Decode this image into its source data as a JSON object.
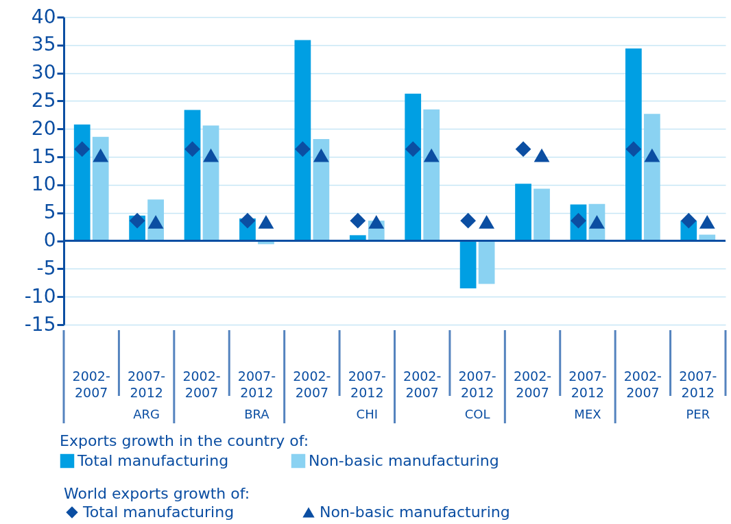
{
  "chart_data": {
    "type": "bar",
    "categories": [
      "2002-2007",
      "2007-2012",
      "2002-2007",
      "2007-2012",
      "2002-2007",
      "2007-2012",
      "2002-2007",
      "2007-2012",
      "2002-2007",
      "2007-2012",
      "2002-2007",
      "2007-2012"
    ],
    "series": [
      {
        "name": "Total manufacturing",
        "color": "#009fe3",
        "values": [
          20.8,
          4.5,
          23.4,
          4.0,
          35.9,
          1.0,
          26.3,
          -8.5,
          10.2,
          6.5,
          34.4,
          3.6
        ]
      },
      {
        "name": "Non-basic manufacturing",
        "color": "#8ad2f2",
        "values": [
          18.6,
          7.4,
          20.6,
          -0.6,
          18.2,
          3.6,
          23.5,
          -7.7,
          9.3,
          6.6,
          22.7,
          1.1
        ]
      },
      {
        "name": "Total manufacturing",
        "type": "scatter",
        "marker": "diamond",
        "color": "#0b4ea2",
        "values": [
          16.4,
          3.6,
          16.4,
          3.6,
          16.4,
          3.6,
          16.4,
          3.6,
          16.4,
          3.6,
          16.4,
          3.6
        ]
      },
      {
        "name": "Non-basic manufacturing",
        "type": "scatter",
        "marker": "triangle",
        "color": "#0b4ea2",
        "values": [
          15.3,
          3.4,
          15.3,
          3.4,
          15.3,
          3.4,
          15.3,
          3.4,
          15.3,
          3.4,
          15.3,
          3.4
        ]
      }
    ],
    "ylim": [
      -15,
      40
    ],
    "yticks": [
      -15,
      -10,
      -5,
      0,
      5,
      10,
      15,
      20,
      25,
      30,
      35,
      40
    ],
    "grid": "y",
    "legend": "bottom",
    "legend_title": "Exports growth in the country of:",
    "ref_lines": [
      {
        "axis": "y",
        "value": 0,
        "color": "#0b4ea2"
      }
    ],
    "annotations": [
      "ARG",
      "BRA",
      "CHI",
      "COL",
      "MEX",
      "PER",
      "World exports growth of:"
    ]
  }
}
